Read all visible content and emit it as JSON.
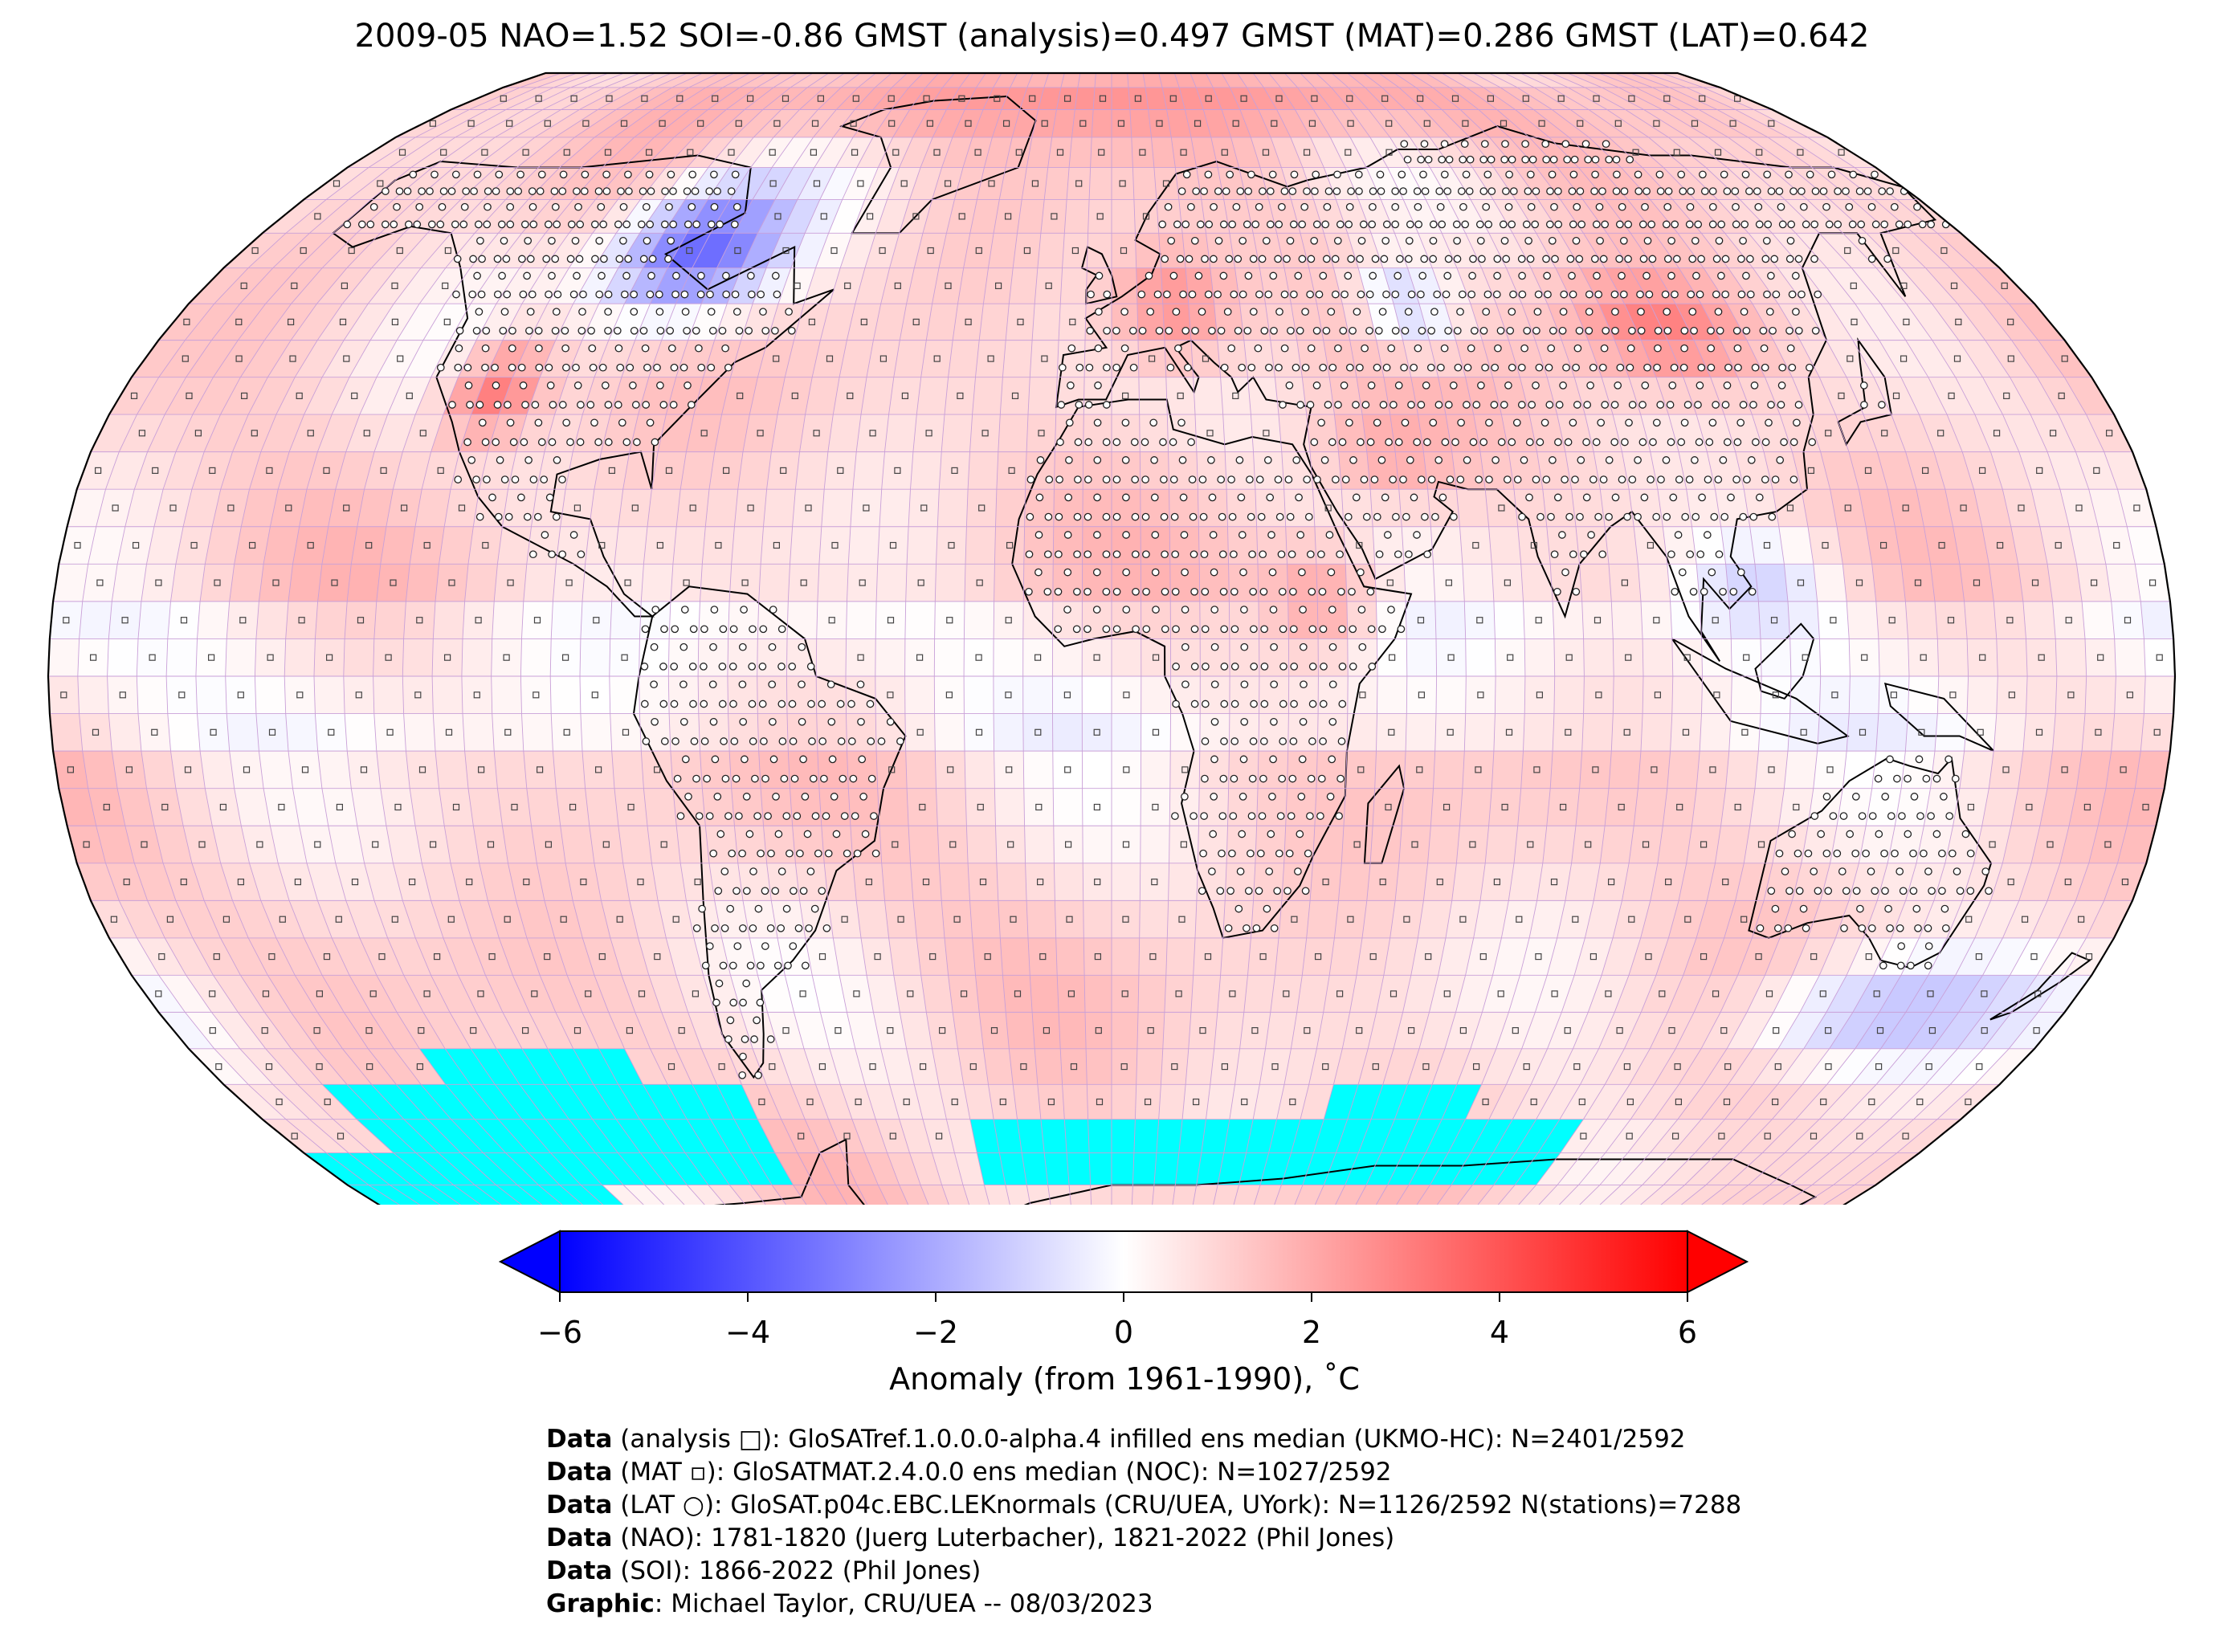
{
  "title": "2009-05 NAO=1.52 SOI=-0.86 GMST (analysis)=0.497 GMST (MAT)=0.286 GMST (LAT)=0.642",
  "map": {
    "projection": "Robinson",
    "colors": {
      "sea_ice_mask": "#00ffff",
      "grid_lines": "#c9a0d8",
      "coastline": "#000000"
    },
    "anomaly_regions": [
      {
        "region": "North America (Canada/Hudson Bay)",
        "anomaly_c": -3.5
      },
      {
        "region": "Western United States",
        "anomaly_c": 3.0
      },
      {
        "region": "Europe",
        "anomaly_c": 2.5
      },
      {
        "region": "Central Asia",
        "anomaly_c": -1.0
      },
      {
        "region": "Northern China / Mongolia",
        "anomaly_c": 3.0
      },
      {
        "region": "Middle East",
        "anomaly_c": 2.0
      },
      {
        "region": "East Africa",
        "anomaly_c": 2.0
      },
      {
        "region": "South-East Asia",
        "anomaly_c": -1.0
      },
      {
        "region": "Southern Ocean south of Australia",
        "anomaly_c": -1.5
      },
      {
        "region": "Antarctica",
        "anomaly_c": 1.5
      },
      {
        "region": "Arctic",
        "anomaly_c": 2.5
      }
    ]
  },
  "colorbar": {
    "label": "Anomaly (from 1961-1990), ˚C",
    "ticks": [
      "−6",
      "−4",
      "−2",
      "0",
      "2",
      "4",
      "6"
    ],
    "vmin": -6,
    "vmax": 6,
    "cmap": [
      "#0000ff",
      "#ffffff",
      "#ff0000"
    ]
  },
  "credits": [
    {
      "label": "Data",
      "text": " (analysis □): GloSATref.1.0.0.0-alpha.4 infilled ens median (UKMO-HC): N=2401/2592"
    },
    {
      "label": "Data",
      "text": " (MAT ▫): GloSATMAT.2.4.0.0 ens median (NOC): N=1027/2592"
    },
    {
      "label": "Data",
      "text": " (LAT ○): GloSAT.p04c.EBC.LEKnormals (CRU/UEA, UYork): N=1126/2592 N(stations)=7288"
    },
    {
      "label": "Data",
      "text": " (NAO): 1781-1820 (Juerg Luterbacher), 1821-2022 (Phil Jones)"
    },
    {
      "label": "Data",
      "text": " (SOI): 1866-2022 (Phil Jones)"
    },
    {
      "label": "Graphic",
      "text": ": Michael Taylor, CRU/UEA -- 08/03/2023"
    }
  ]
}
